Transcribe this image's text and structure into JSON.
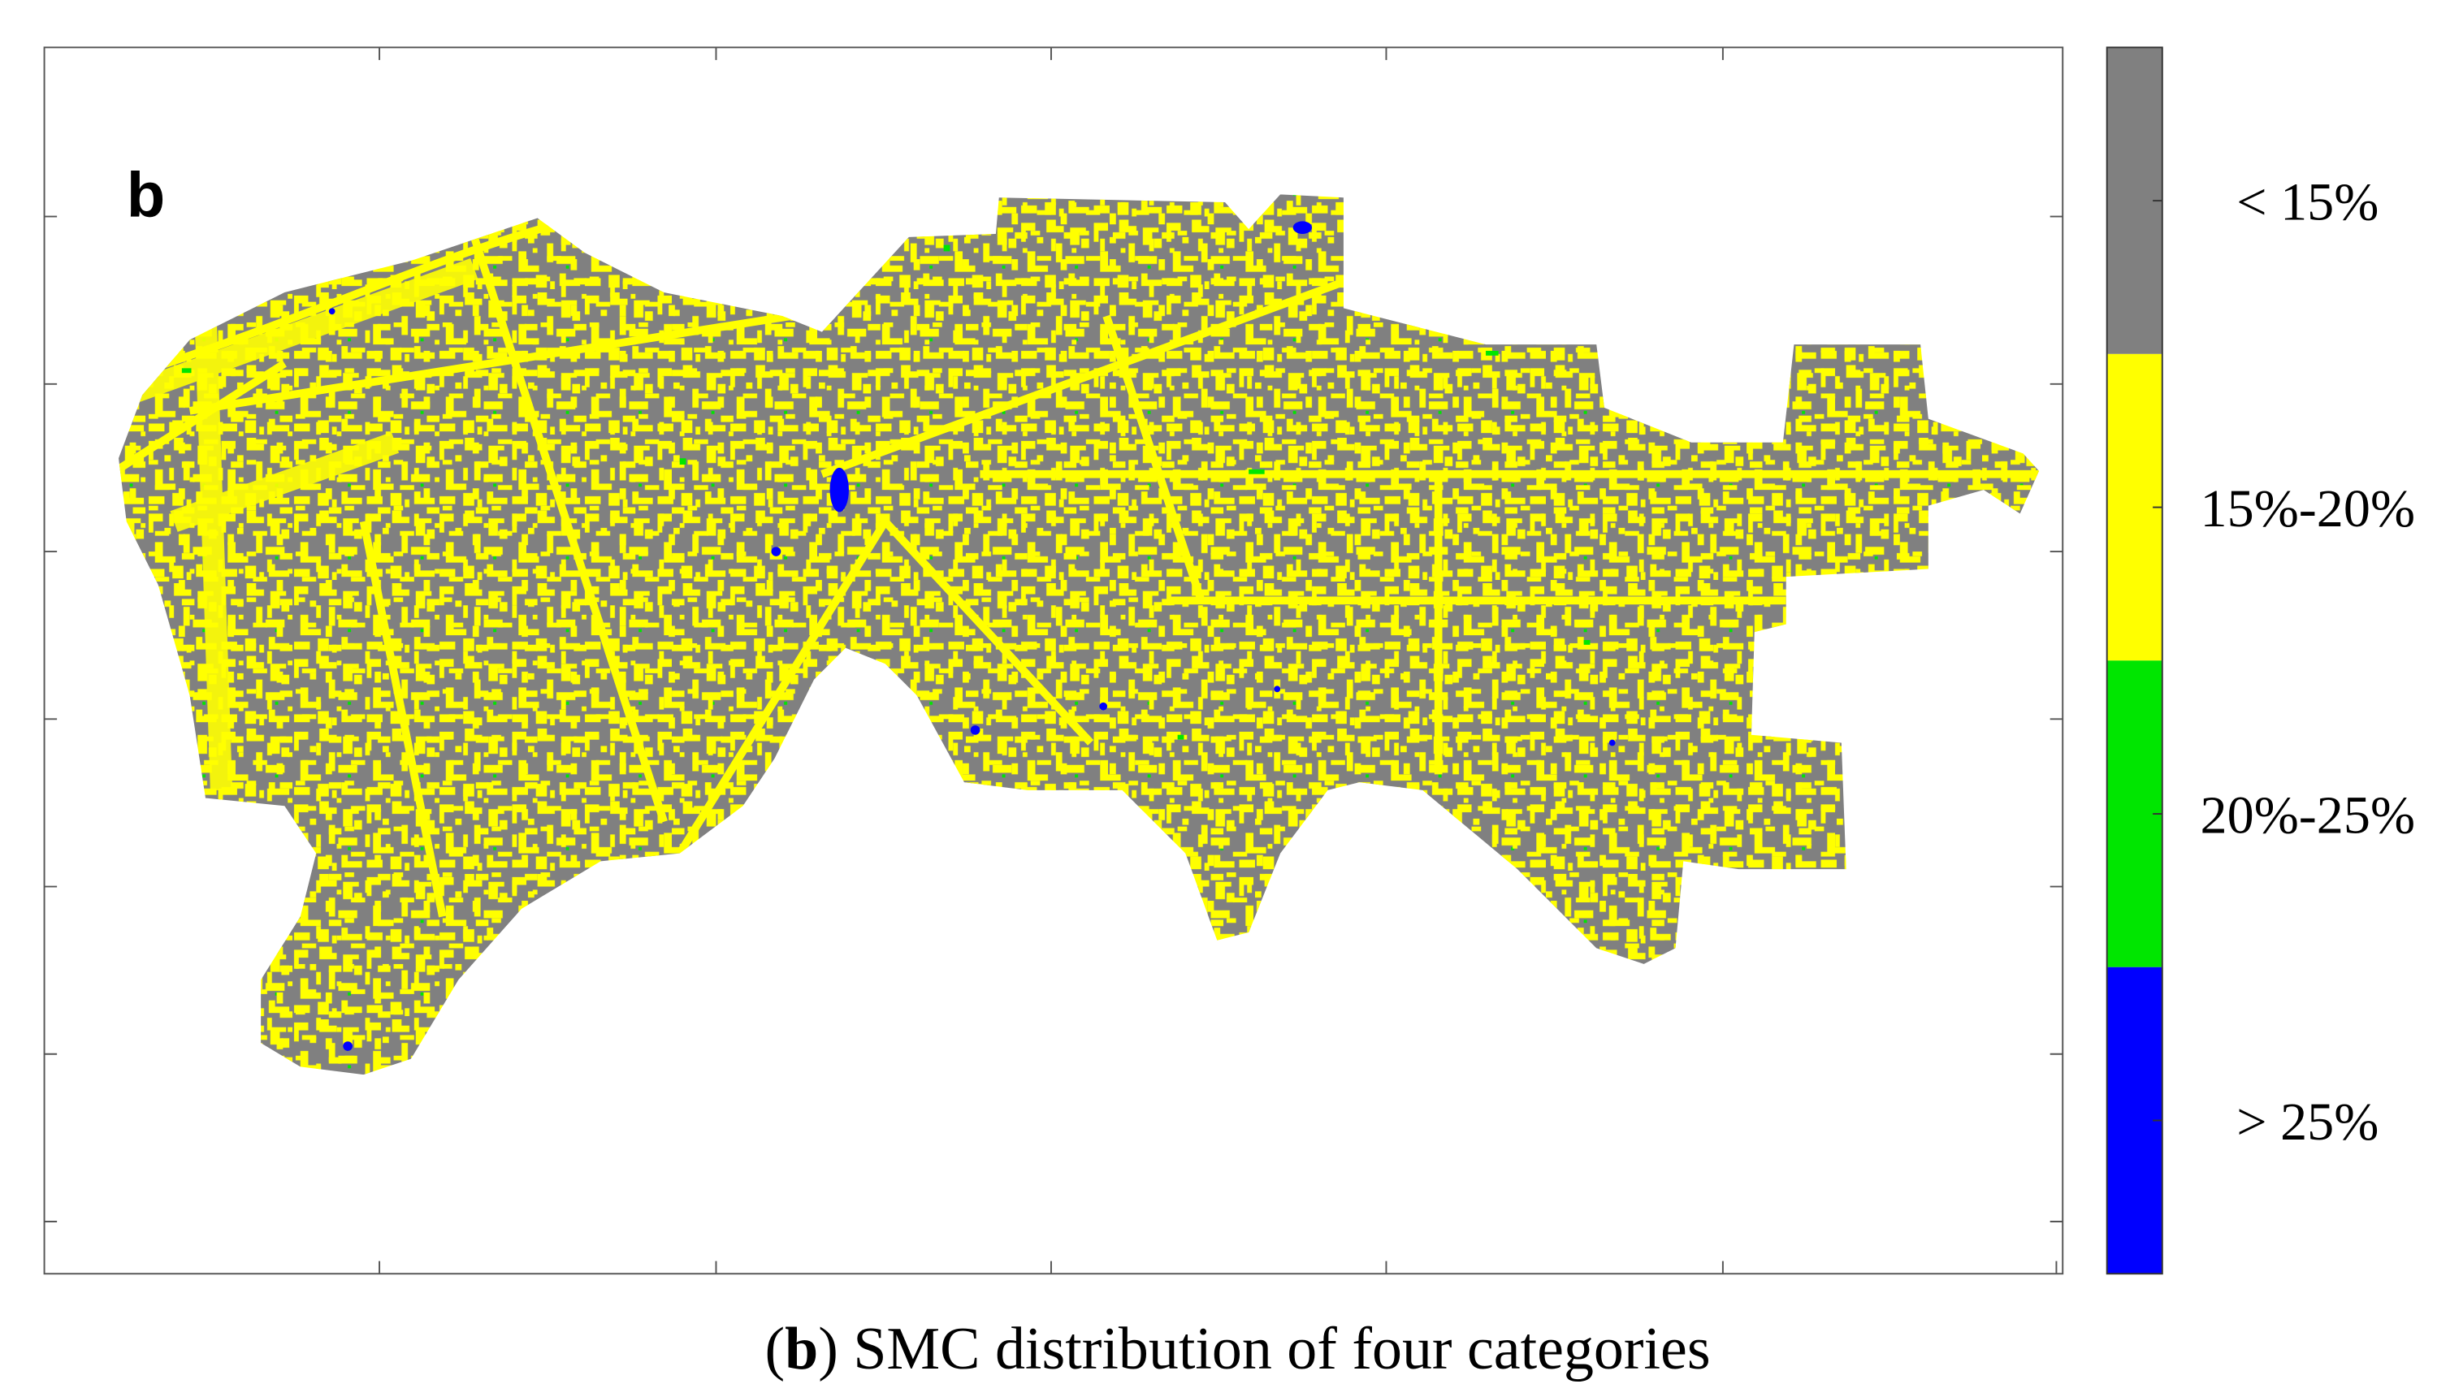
{
  "panel_label": "b",
  "legend": [
    {
      "label": "< 15%",
      "color": "#808080"
    },
    {
      "label": "15%-20%",
      "color": "#ffff00"
    },
    {
      "label": "20%-25%",
      "color": "#00e600"
    },
    {
      "label": "> 25%",
      "color": "#0000ff"
    }
  ],
  "caption": {
    "prefix": "(",
    "label": "b",
    "suffix": ") SMC distribution of four categories"
  }
}
